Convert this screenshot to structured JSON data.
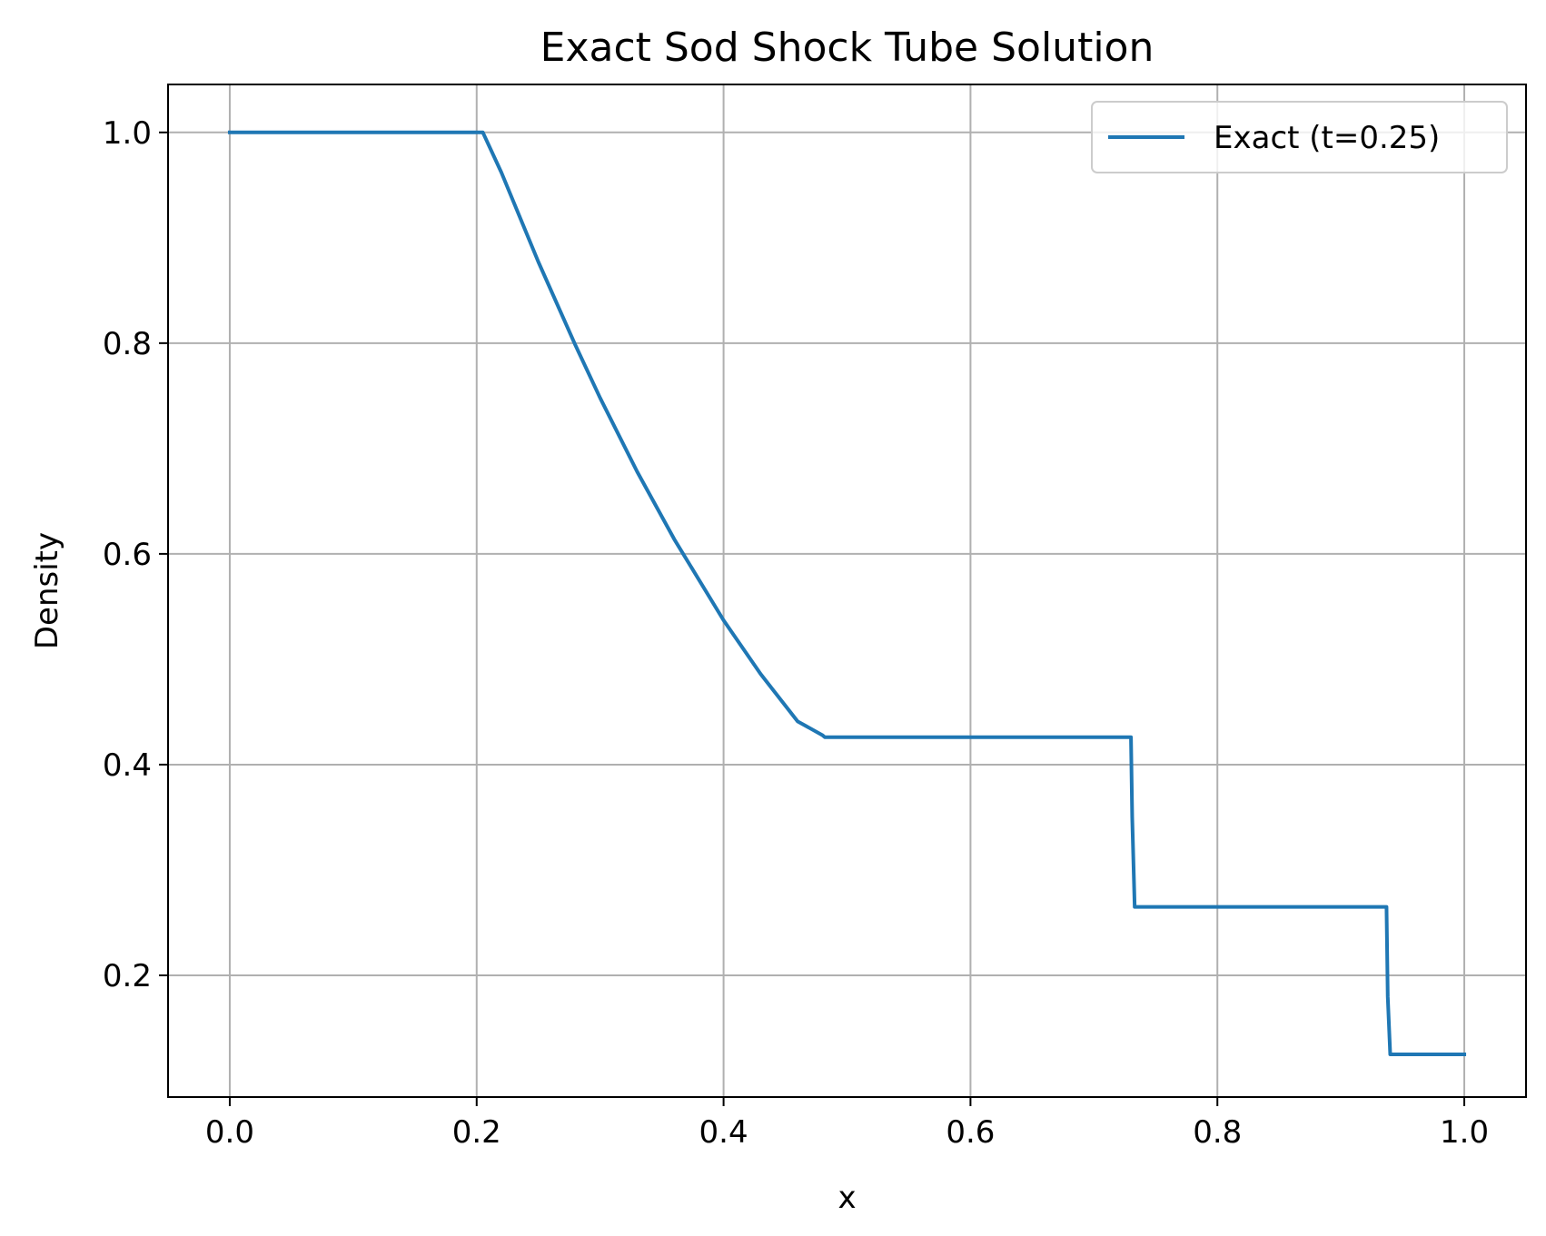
{
  "chart_data": {
    "type": "line",
    "title": "Exact Sod Shock Tube Solution",
    "xlabel": "x",
    "ylabel": "Density",
    "xlim": [
      -0.05,
      1.05
    ],
    "ylim": [
      0.0845,
      1.0455
    ],
    "xticks": [
      0.0,
      0.2,
      0.4,
      0.6,
      0.8,
      1.0
    ],
    "xtick_labels": [
      "0.0",
      "0.2",
      "0.4",
      "0.6",
      "0.8",
      "1.0"
    ],
    "yticks": [
      0.2,
      0.4,
      0.6,
      0.8,
      1.0
    ],
    "ytick_labels": [
      "0.2",
      "0.4",
      "0.6",
      "0.8",
      "1.0"
    ],
    "grid": true,
    "legend_position": "top-right",
    "series": [
      {
        "name": "Exact (t=0.25)",
        "color": "#1f77b4",
        "x": [
          0.0,
          0.2,
          0.205,
          0.22,
          0.25,
          0.28,
          0.3,
          0.33,
          0.36,
          0.4,
          0.43,
          0.46,
          0.48,
          0.482,
          0.6,
          0.73,
          0.731,
          0.733,
          0.8,
          0.937,
          0.938,
          0.94,
          1.0
        ],
        "y": [
          1.0,
          1.0,
          1.0,
          0.962,
          0.877,
          0.798,
          0.748,
          0.678,
          0.614,
          0.537,
          0.486,
          0.441,
          0.428,
          0.426,
          0.426,
          0.426,
          0.35,
          0.265,
          0.265,
          0.265,
          0.18,
          0.125,
          0.125
        ]
      }
    ]
  }
}
